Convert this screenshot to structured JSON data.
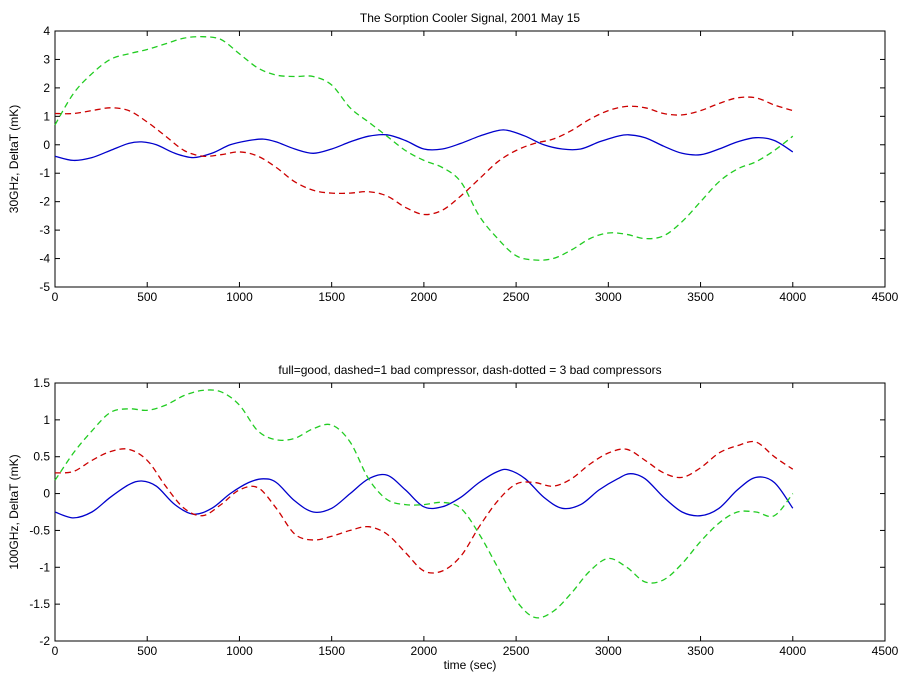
{
  "chart_data": [
    {
      "type": "line",
      "title": "The Sorption Cooler Signal, 2001 May 15",
      "xlabel": "",
      "ylabel": "30GHz, DeltaT (mK)",
      "xlim": [
        0,
        4500
      ],
      "ylim": [
        -5,
        4
      ],
      "xticks": [
        "0",
        "500",
        "1000",
        "1500",
        "2000",
        "2500",
        "3000",
        "3500",
        "4000",
        "4500"
      ],
      "yticks": [
        "4",
        "3",
        "2",
        "1",
        "0",
        "-1",
        "-2",
        "-3",
        "-4",
        "-5"
      ],
      "grid": false,
      "series": [
        {
          "style": "solid",
          "color": "#0000cc",
          "x": [
            0,
            100,
            200,
            300,
            400,
            470,
            550,
            650,
            750,
            850,
            950,
            1050,
            1130,
            1200,
            1300,
            1400,
            1500,
            1600,
            1700,
            1800,
            1900,
            2000,
            2100,
            2200,
            2300,
            2400,
            2460,
            2550,
            2650,
            2750,
            2850,
            2950,
            3050,
            3110,
            3200,
            3300,
            3400,
            3500,
            3600,
            3700,
            3800,
            3900,
            4000
          ],
          "y": [
            -0.4,
            -0.55,
            -0.45,
            -0.2,
            0.05,
            0.1,
            0.0,
            -0.3,
            -0.45,
            -0.3,
            0.0,
            0.15,
            0.2,
            0.1,
            -0.15,
            -0.3,
            -0.15,
            0.1,
            0.3,
            0.35,
            0.15,
            -0.15,
            -0.15,
            0.05,
            0.3,
            0.5,
            0.5,
            0.3,
            0.0,
            -0.15,
            -0.15,
            0.1,
            0.3,
            0.35,
            0.25,
            -0.05,
            -0.3,
            -0.35,
            -0.15,
            0.1,
            0.25,
            0.15,
            -0.25
          ]
        },
        {
          "style": "dashed",
          "color": "#cc0000",
          "x": [
            0,
            100,
            200,
            300,
            400,
            500,
            600,
            700,
            800,
            900,
            1000,
            1100,
            1200,
            1300,
            1400,
            1500,
            1600,
            1700,
            1800,
            1900,
            2000,
            2100,
            2200,
            2300,
            2400,
            2500,
            2600,
            2700,
            2800,
            2900,
            3000,
            3100,
            3200,
            3300,
            3400,
            3500,
            3600,
            3700,
            3800,
            3900,
            4000
          ],
          "y": [
            1.1,
            1.1,
            1.2,
            1.3,
            1.2,
            0.8,
            0.3,
            -0.2,
            -0.4,
            -0.35,
            -0.25,
            -0.4,
            -0.8,
            -1.3,
            -1.6,
            -1.7,
            -1.7,
            -1.65,
            -1.8,
            -2.2,
            -2.45,
            -2.3,
            -1.8,
            -1.2,
            -0.6,
            -0.2,
            0.05,
            0.2,
            0.5,
            0.9,
            1.2,
            1.35,
            1.3,
            1.1,
            1.05,
            1.2,
            1.45,
            1.65,
            1.65,
            1.4,
            1.2
          ]
        },
        {
          "style": "dashed",
          "color": "#22cc22",
          "x": [
            0,
            100,
            200,
            300,
            400,
            500,
            600,
            700,
            800,
            900,
            1000,
            1100,
            1200,
            1300,
            1400,
            1500,
            1600,
            1700,
            1800,
            1900,
            2000,
            2100,
            2200,
            2300,
            2400,
            2500,
            2600,
            2700,
            2800,
            2900,
            3000,
            3100,
            3200,
            3300,
            3400,
            3500,
            3600,
            3700,
            3800,
            3900,
            4000
          ],
          "y": [
            0.7,
            1.8,
            2.5,
            3.0,
            3.2,
            3.35,
            3.55,
            3.75,
            3.8,
            3.7,
            3.2,
            2.7,
            2.45,
            2.4,
            2.4,
            2.1,
            1.3,
            0.8,
            0.3,
            -0.2,
            -0.55,
            -0.8,
            -1.3,
            -2.5,
            -3.3,
            -3.9,
            -4.05,
            -4.0,
            -3.7,
            -3.3,
            -3.1,
            -3.15,
            -3.3,
            -3.2,
            -2.7,
            -2.0,
            -1.3,
            -0.85,
            -0.6,
            -0.2,
            0.3
          ]
        }
      ]
    },
    {
      "type": "line",
      "title": "full=good, dashed=1 bad compressor, dash-dotted = 3 bad compressors",
      "xlabel": "time (sec)",
      "ylabel": "100GHz, DeltaT (mK)",
      "xlim": [
        0,
        4500
      ],
      "ylim": [
        -2,
        1.5
      ],
      "xticks": [
        "0",
        "500",
        "1000",
        "1500",
        "2000",
        "2500",
        "3000",
        "3500",
        "4000",
        "4500"
      ],
      "yticks": [
        "1.5",
        "1",
        "0.5",
        "0",
        "-0.5",
        "-1",
        "-1.5",
        "-2"
      ],
      "grid": false,
      "series": [
        {
          "style": "solid",
          "color": "#0000cc",
          "x": [
            0,
            100,
            200,
            300,
            400,
            470,
            550,
            650,
            750,
            850,
            950,
            1050,
            1130,
            1200,
            1300,
            1400,
            1500,
            1600,
            1700,
            1800,
            1900,
            2000,
            2100,
            2200,
            2300,
            2400,
            2460,
            2550,
            2650,
            2750,
            2850,
            2950,
            3050,
            3120,
            3200,
            3300,
            3400,
            3500,
            3600,
            3700,
            3800,
            3900,
            4000
          ],
          "y": [
            -0.25,
            -0.33,
            -0.25,
            -0.05,
            0.12,
            0.17,
            0.1,
            -0.15,
            -0.28,
            -0.2,
            0.0,
            0.15,
            0.2,
            0.15,
            -0.1,
            -0.25,
            -0.2,
            0.0,
            0.2,
            0.25,
            0.05,
            -0.18,
            -0.18,
            -0.05,
            0.15,
            0.3,
            0.32,
            0.2,
            -0.05,
            -0.2,
            -0.15,
            0.05,
            0.2,
            0.27,
            0.2,
            -0.05,
            -0.25,
            -0.3,
            -0.2,
            0.05,
            0.22,
            0.15,
            -0.2
          ]
        },
        {
          "style": "dashed",
          "color": "#cc0000",
          "x": [
            0,
            100,
            200,
            300,
            400,
            500,
            600,
            700,
            800,
            900,
            1000,
            1100,
            1200,
            1300,
            1400,
            1500,
            1600,
            1700,
            1800,
            1900,
            2000,
            2100,
            2200,
            2300,
            2400,
            2500,
            2600,
            2700,
            2800,
            2900,
            3000,
            3100,
            3200,
            3300,
            3400,
            3500,
            3600,
            3700,
            3800,
            3900,
            4000
          ],
          "y": [
            0.28,
            0.3,
            0.45,
            0.57,
            0.6,
            0.45,
            0.1,
            -0.2,
            -0.3,
            -0.15,
            0.05,
            0.08,
            -0.2,
            -0.55,
            -0.63,
            -0.58,
            -0.5,
            -0.45,
            -0.55,
            -0.8,
            -1.05,
            -1.05,
            -0.85,
            -0.45,
            -0.1,
            0.13,
            0.15,
            0.1,
            0.2,
            0.4,
            0.55,
            0.6,
            0.45,
            0.28,
            0.22,
            0.35,
            0.55,
            0.65,
            0.7,
            0.5,
            0.33
          ]
        },
        {
          "style": "dashed",
          "color": "#22cc22",
          "x": [
            0,
            100,
            200,
            300,
            400,
            500,
            600,
            700,
            800,
            900,
            1000,
            1100,
            1200,
            1300,
            1400,
            1500,
            1600,
            1700,
            1800,
            1900,
            2000,
            2100,
            2200,
            2300,
            2400,
            2500,
            2600,
            2700,
            2800,
            2900,
            3000,
            3100,
            3200,
            3300,
            3400,
            3500,
            3600,
            3700,
            3800,
            3900,
            4000
          ],
          "y": [
            0.18,
            0.55,
            0.85,
            1.1,
            1.15,
            1.13,
            1.2,
            1.33,
            1.4,
            1.38,
            1.2,
            0.85,
            0.73,
            0.75,
            0.88,
            0.93,
            0.7,
            0.2,
            -0.08,
            -0.15,
            -0.15,
            -0.12,
            -0.2,
            -0.55,
            -1.0,
            -1.45,
            -1.68,
            -1.6,
            -1.35,
            -1.05,
            -0.88,
            -1.0,
            -1.2,
            -1.17,
            -0.95,
            -0.65,
            -0.4,
            -0.25,
            -0.25,
            -0.3,
            0.0
          ]
        }
      ]
    }
  ]
}
